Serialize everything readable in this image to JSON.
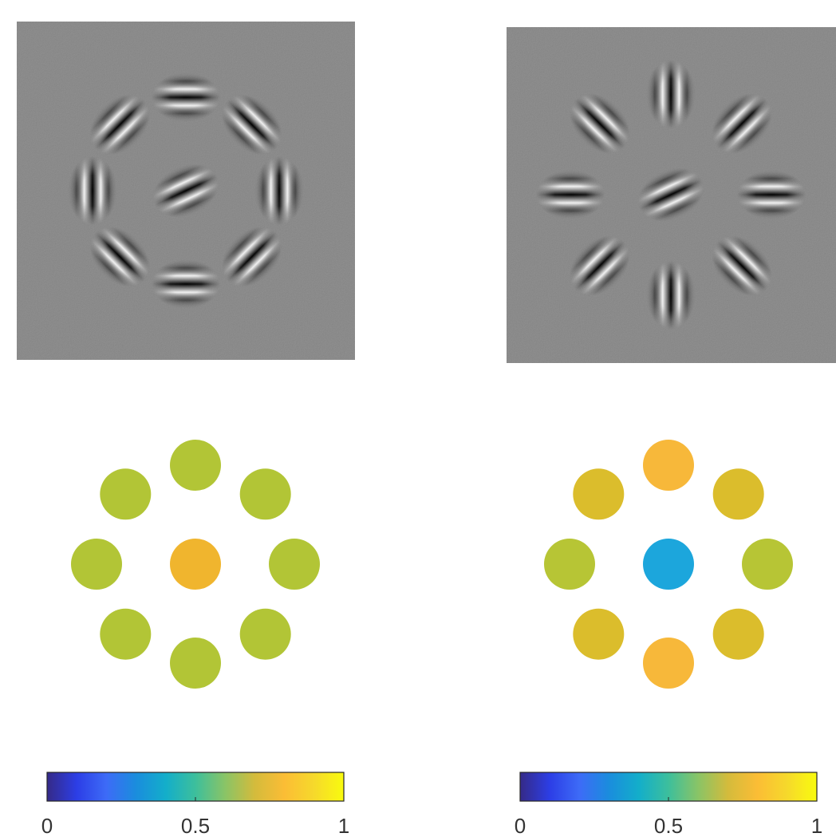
{
  "panels": [
    {
      "id": "left",
      "stimulus": {
        "center": {
          "orientation_deg": 25,
          "stripe": "diagonal"
        },
        "surround_arrangement": "tangential",
        "surround": [
          {
            "angle_deg": 0
          },
          {
            "angle_deg": 45
          },
          {
            "angle_deg": 90
          },
          {
            "angle_deg": 135
          },
          {
            "angle_deg": 180
          },
          {
            "angle_deg": 225
          },
          {
            "angle_deg": 270
          },
          {
            "angle_deg": 315
          }
        ]
      },
      "discs": {
        "center": {
          "value": 0.8,
          "color": "#f0b52e"
        },
        "surround": [
          {
            "value": 0.68,
            "color": "#b2c536"
          },
          {
            "value": 0.68,
            "color": "#b2c536"
          },
          {
            "value": 0.68,
            "color": "#b2c536"
          },
          {
            "value": 0.68,
            "color": "#b2c536"
          },
          {
            "value": 0.68,
            "color": "#b2c536"
          },
          {
            "value": 0.68,
            "color": "#b2c536"
          },
          {
            "value": 0.68,
            "color": "#b2c536"
          },
          {
            "value": 0.68,
            "color": "#b2c536"
          }
        ]
      },
      "colorbar": {
        "ticks": [
          "0",
          "0.5",
          "1"
        ]
      }
    },
    {
      "id": "right",
      "stimulus": {
        "center": {
          "orientation_deg": 25,
          "stripe": "diagonal"
        },
        "surround_arrangement": "radial",
        "surround": [
          {
            "angle_deg": 0
          },
          {
            "angle_deg": 45
          },
          {
            "angle_deg": 90
          },
          {
            "angle_deg": 135
          },
          {
            "angle_deg": 180
          },
          {
            "angle_deg": 225
          },
          {
            "angle_deg": 270
          },
          {
            "angle_deg": 315
          }
        ]
      },
      "discs": {
        "center": {
          "value": 0.4,
          "color": "#1ca6dc"
        },
        "surround": [
          {
            "value": 0.7,
            "color": "#b7c535"
          },
          {
            "value": 0.76,
            "color": "#dbbd2c"
          },
          {
            "value": 0.82,
            "color": "#f7b83a"
          },
          {
            "value": 0.76,
            "color": "#dbbd2c"
          },
          {
            "value": 0.7,
            "color": "#b7c535"
          },
          {
            "value": 0.76,
            "color": "#dbbd2c"
          },
          {
            "value": 0.82,
            "color": "#f7b83a"
          },
          {
            "value": 0.76,
            "color": "#dbbd2c"
          }
        ]
      },
      "colorbar": {
        "ticks": [
          "0",
          "0.5",
          "1"
        ]
      }
    }
  ],
  "colormap": {
    "name": "parula",
    "stops": [
      "#352a87",
      "#2c3ee6",
      "#3d6bf7",
      "#1a8ddd",
      "#13aeca",
      "#3dbf9c",
      "#8ac466",
      "#d4bb3c",
      "#fbbd35",
      "#f6d92b",
      "#f9fb0e"
    ]
  },
  "colors": {
    "stimulus_background": "#808080",
    "stripe_light": "#ffffff",
    "stripe_dark": "#000000"
  }
}
